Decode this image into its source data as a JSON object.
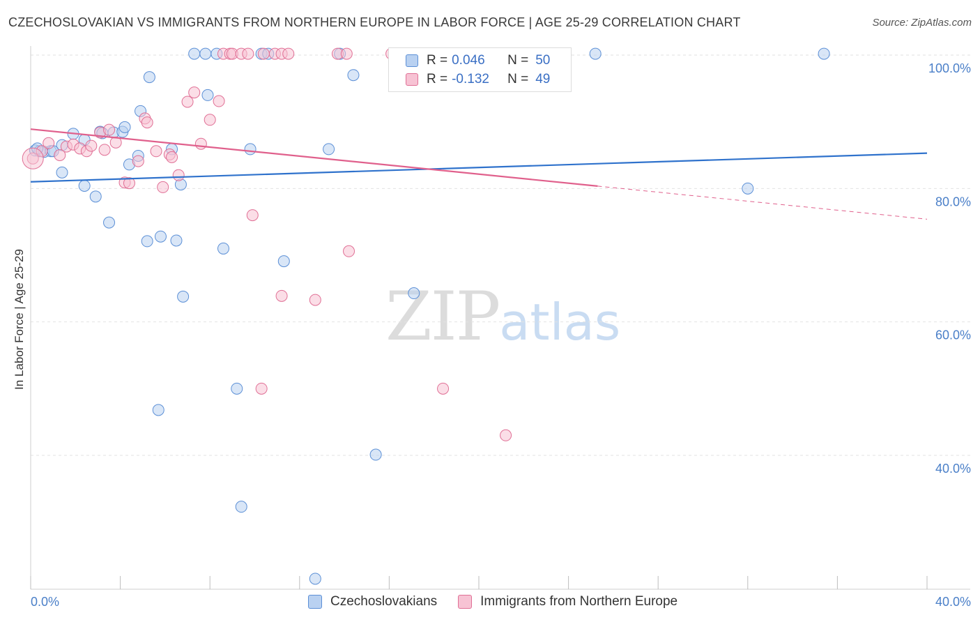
{
  "chart_data": {
    "type": "scatter",
    "title": "CZECHOSLOVAKIAN VS IMMIGRANTS FROM NORTHERN EUROPE IN LABOR FORCE | AGE 25-29 CORRELATION CHART",
    "source": "Source: ZipAtlas.com",
    "xlabel": "",
    "ylabel": "In Labor Force | Age 25-29",
    "xlim": [
      0,
      40
    ],
    "ylim": [
      20,
      103
    ],
    "x_tick_labels": [
      "0.0%",
      "40.0%"
    ],
    "y_ticks": [
      {
        "value": 100,
        "label": "100.0%"
      },
      {
        "value": 80,
        "label": "80.0%"
      },
      {
        "value": 60,
        "label": "60.0%"
      },
      {
        "value": 40,
        "label": "40.0%"
      }
    ],
    "x_minor_ticks": [
      0,
      4,
      8,
      12,
      16,
      20,
      24,
      28,
      32,
      36,
      40
    ],
    "grid": true,
    "watermark": {
      "zip": "ZIP",
      "atlas": "atlas"
    },
    "legend": {
      "rows": [
        {
          "r_label": "R =",
          "r_value": "0.046",
          "n_label": "N =",
          "n_value": "50"
        },
        {
          "r_label": "R =",
          "r_value": "-0.132",
          "n_label": "N =",
          "n_value": "49"
        }
      ]
    },
    "series": [
      {
        "name": "Czechoslovakians",
        "color": "#5b8fd6",
        "fill": "#b9d1f1",
        "trend": {
          "x": [
            0,
            40
          ],
          "y": [
            81.0,
            85.3
          ],
          "solid_to": 40
        },
        "points": [
          [
            0.2,
            85.7
          ],
          [
            0.4,
            85.6
          ],
          [
            0.6,
            85.5
          ],
          [
            0.9,
            85.6
          ],
          [
            1.4,
            86.5
          ],
          [
            1.9,
            88.2
          ],
          [
            2.4,
            87.3
          ],
          [
            3.1,
            88.5
          ],
          [
            3.7,
            88.4
          ],
          [
            4.1,
            88.5
          ],
          [
            4.2,
            89.2
          ],
          [
            2.4,
            80.4
          ],
          [
            1.4,
            82.4
          ],
          [
            2.9,
            78.8
          ],
          [
            3.5,
            74.9
          ],
          [
            4.4,
            83.6
          ],
          [
            4.8,
            84.9
          ],
          [
            4.9,
            91.6
          ],
          [
            5.3,
            96.7
          ],
          [
            5.2,
            72.1
          ],
          [
            5.8,
            72.8
          ],
          [
            6.3,
            85.9
          ],
          [
            6.5,
            72.2
          ],
          [
            6.7,
            80.6
          ],
          [
            6.8,
            63.8
          ],
          [
            7.3,
            100.2
          ],
          [
            7.8,
            100.2
          ],
          [
            7.9,
            94.0
          ],
          [
            8.3,
            100.2
          ],
          [
            8.6,
            71.0
          ],
          [
            9.2,
            50.0
          ],
          [
            9.4,
            32.3
          ],
          [
            9.8,
            85.9
          ],
          [
            10.3,
            100.2
          ],
          [
            10.6,
            100.2
          ],
          [
            11.3,
            69.1
          ],
          [
            12.7,
            21.5
          ],
          [
            13.3,
            85.9
          ],
          [
            13.8,
            100.2
          ],
          [
            14.4,
            97.0
          ],
          [
            15.4,
            40.1
          ],
          [
            17.1,
            64.3
          ],
          [
            20.2,
            100.2
          ],
          [
            25.2,
            100.2
          ],
          [
            32.0,
            80.0
          ],
          [
            35.4,
            100.2
          ],
          [
            5.7,
            46.8
          ],
          [
            1.0,
            85.6
          ],
          [
            0.3,
            86.0
          ],
          [
            3.2,
            88.3
          ]
        ]
      },
      {
        "name": "Immigrants from Northern Europe",
        "color": "#e06f95",
        "fill": "#f7c3d4",
        "trend": {
          "x": [
            0,
            40
          ],
          "y": [
            88.9,
            75.4
          ],
          "solid_to": 25.3
        },
        "points": [
          [
            0.1,
            84.5
          ],
          [
            0.5,
            85.6
          ],
          [
            0.8,
            86.8
          ],
          [
            1.3,
            85.0
          ],
          [
            1.6,
            86.3
          ],
          [
            1.9,
            86.6
          ],
          [
            2.2,
            86.0
          ],
          [
            2.5,
            85.6
          ],
          [
            2.7,
            86.4
          ],
          [
            3.1,
            88.4
          ],
          [
            3.3,
            85.8
          ],
          [
            3.5,
            88.8
          ],
          [
            3.8,
            86.9
          ],
          [
            4.2,
            80.9
          ],
          [
            4.4,
            80.8
          ],
          [
            4.8,
            84.1
          ],
          [
            5.1,
            90.5
          ],
          [
            5.2,
            89.9
          ],
          [
            5.6,
            85.6
          ],
          [
            5.9,
            80.2
          ],
          [
            6.2,
            85.1
          ],
          [
            6.3,
            84.7
          ],
          [
            6.6,
            82.0
          ],
          [
            7.0,
            93.0
          ],
          [
            7.3,
            94.4
          ],
          [
            7.6,
            86.7
          ],
          [
            8.0,
            90.3
          ],
          [
            8.4,
            93.1
          ],
          [
            8.6,
            100.2
          ],
          [
            8.9,
            100.2
          ],
          [
            9.0,
            100.2
          ],
          [
            9.4,
            100.2
          ],
          [
            9.7,
            100.2
          ],
          [
            9.9,
            76.0
          ],
          [
            10.4,
            100.2
          ],
          [
            10.9,
            100.2
          ],
          [
            11.2,
            100.2
          ],
          [
            11.5,
            100.2
          ],
          [
            11.2,
            63.9
          ],
          [
            12.7,
            63.3
          ],
          [
            13.7,
            100.2
          ],
          [
            14.1,
            100.2
          ],
          [
            14.2,
            70.6
          ],
          [
            10.3,
            50.0
          ],
          [
            16.1,
            100.2
          ],
          [
            18.1,
            100.2
          ],
          [
            19.9,
            100.2
          ],
          [
            18.4,
            50.0
          ],
          [
            21.2,
            43.0
          ]
        ]
      }
    ]
  }
}
